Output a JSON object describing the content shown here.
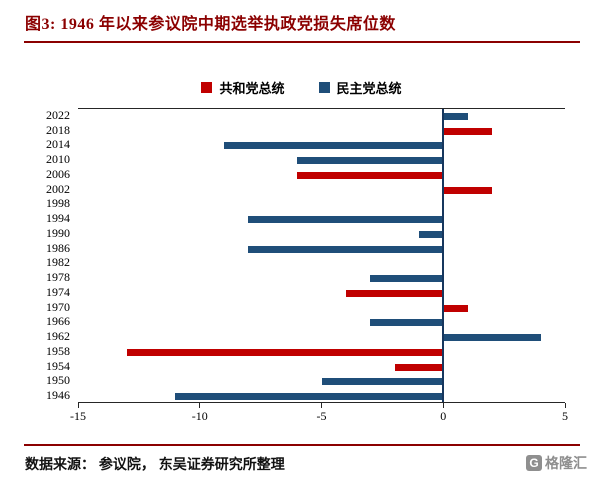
{
  "header": {
    "title": "图3:  1946 年以来参议院中期选举执政党损失席位数"
  },
  "chart_data": {
    "type": "bar",
    "orientation": "horizontal",
    "title": "图3: 1946 年以来参议院中期选举执政党损失席位数",
    "xlabel": "",
    "ylabel": "",
    "categories": [
      "2022",
      "2018",
      "2014",
      "2010",
      "2006",
      "2002",
      "1998",
      "1994",
      "1990",
      "1986",
      "1982",
      "1978",
      "1974",
      "1970",
      "1966",
      "1962",
      "1958",
      "1954",
      "1950",
      "1946"
    ],
    "values": [
      1,
      2,
      -9,
      -6,
      -6,
      2,
      0,
      -8,
      -1,
      -8,
      0,
      -3,
      -4,
      1,
      -3,
      4,
      -13,
      -2,
      -5,
      -11
    ],
    "party": [
      "D",
      "R",
      "D",
      "D",
      "R",
      "R",
      null,
      "D",
      "D",
      "D",
      null,
      "D",
      "R",
      "R",
      "D",
      "D",
      "R",
      "R",
      "D",
      "D"
    ],
    "xlim": [
      -15,
      5
    ],
    "xticks": [
      -15,
      -10,
      -5,
      0,
      5
    ],
    "grid": false,
    "legend_position": "top",
    "zero_axis_color": "#17375e",
    "legend": [
      {
        "party": "R",
        "label": "共和党总统",
        "color": "#c00000"
      },
      {
        "party": "D",
        "label": "民主党总统",
        "color": "#1f4e79"
      }
    ]
  },
  "footer": {
    "source": "数据来源： 参议院， 东吴证券研究所整理",
    "logo_letter": "G",
    "logo_text": "格隆汇"
  },
  "colors": {
    "accent_maroon": "#8b0000",
    "republican_red": "#c00000",
    "democrat_blue": "#1f4e79"
  }
}
